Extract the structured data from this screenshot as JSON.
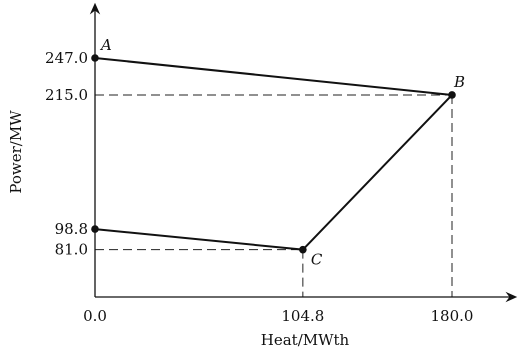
{
  "chart_data": {
    "type": "line",
    "xlabel": "Heat/MWth",
    "ylabel": "Power/MW",
    "xlim": [
      0,
      220
    ],
    "ylim": [
      40,
      280
    ],
    "x_ticks": [
      {
        "value": 0.0,
        "label": "0.0"
      },
      {
        "value": 104.8,
        "label": "104.8"
      },
      {
        "value": 180.0,
        "label": "180.0"
      }
    ],
    "y_ticks": [
      {
        "value": 81.0,
        "label": "81.0"
      },
      {
        "value": 98.8,
        "label": "98.8"
      },
      {
        "value": 215.0,
        "label": "215.0"
      },
      {
        "value": 247.0,
        "label": "247.0"
      }
    ],
    "points": [
      {
        "name": "A",
        "x": 0.0,
        "y": 247.0,
        "labeled": true
      },
      {
        "name": "B",
        "x": 180.0,
        "y": 215.0,
        "labeled": true
      },
      {
        "name": "C",
        "x": 104.8,
        "y": 81.0,
        "labeled": true
      },
      {
        "name": "",
        "x": 0.0,
        "y": 98.8,
        "labeled": false
      }
    ],
    "boundary": [
      [
        0.0,
        247.0
      ],
      [
        180.0,
        215.0
      ],
      [
        104.8,
        81.0
      ],
      [
        0.0,
        98.8
      ]
    ],
    "grid": false,
    "reference_lines": "dashed"
  }
}
